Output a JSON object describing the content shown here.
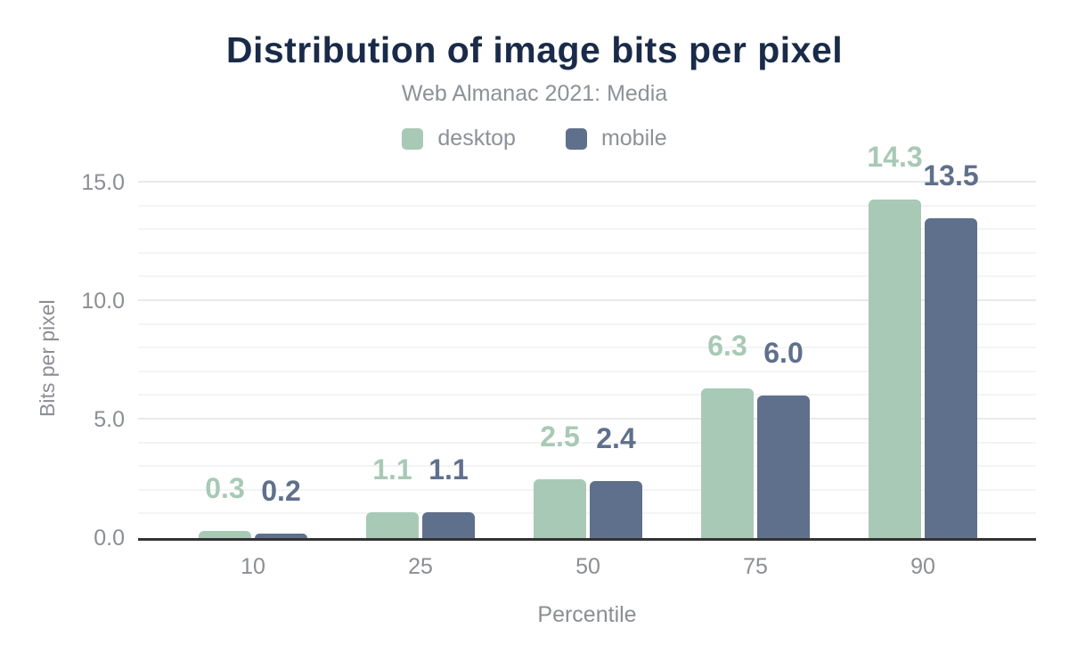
{
  "chart_data": {
    "type": "bar",
    "title": "Distribution of image bits per pixel",
    "subtitle": "Web Almanac 2021: Media",
    "categories": [
      "10",
      "25",
      "50",
      "75",
      "90"
    ],
    "series": [
      {
        "name": "desktop",
        "color": "#a8c9b6",
        "values": [
          0.3,
          1.1,
          2.5,
          6.3,
          14.3
        ],
        "labels": [
          "0.3",
          "1.1",
          "2.5",
          "6.3",
          "14.3"
        ]
      },
      {
        "name": "mobile",
        "color": "#5f708c",
        "values": [
          0.2,
          1.1,
          2.4,
          6.0,
          13.5
        ],
        "labels": [
          "0.2",
          "1.1",
          "2.4",
          "6.0",
          "13.5"
        ]
      }
    ],
    "xlabel": "Percentile",
    "ylabel": "Bits per pixel",
    "ylim": [
      0,
      15
    ],
    "yticks": [
      0,
      5,
      10,
      15
    ],
    "ytick_labels": [
      "0.0",
      "5.0",
      "10.0",
      "15.0"
    ],
    "minor_grid_step": 1,
    "major_grid_step": 5,
    "grid": true,
    "legend_position": "top",
    "colors": {
      "title": "#1a2b49",
      "subtitle_text": "#8e9196",
      "axis_text": "#8b8e93",
      "axis_line": "#333333",
      "gridline_minor": "#f4f4f4",
      "gridline_major": "#e9e9e9",
      "background": "#ffffff"
    }
  }
}
